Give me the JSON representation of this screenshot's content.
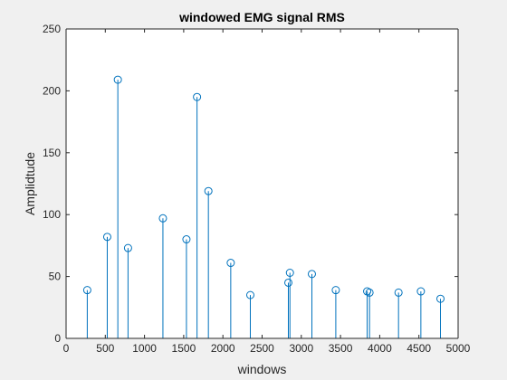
{
  "chart_data": {
    "type": "scatter",
    "plot_style": "stem",
    "title": "windowed EMG signal RMS",
    "xlabel": "windows",
    "ylabel": "Amplidtude",
    "xlim": [
      0,
      5000
    ],
    "ylim": [
      0,
      250
    ],
    "xticks": [
      0,
      500,
      1000,
      1500,
      2000,
      2500,
      3000,
      3500,
      4000,
      4500,
      5000
    ],
    "yticks": [
      0,
      50,
      100,
      150,
      200,
      250
    ],
    "grid": false,
    "box": true,
    "series": [
      {
        "marker": "circle",
        "color": "#0072BD",
        "points": [
          {
            "x": 270,
            "y": 39
          },
          {
            "x": 525,
            "y": 82
          },
          {
            "x": 660,
            "y": 209
          },
          {
            "x": 790,
            "y": 73
          },
          {
            "x": 1235,
            "y": 97
          },
          {
            "x": 1535,
            "y": 80
          },
          {
            "x": 1670,
            "y": 195
          },
          {
            "x": 1815,
            "y": 119
          },
          {
            "x": 2100,
            "y": 61
          },
          {
            "x": 2350,
            "y": 35
          },
          {
            "x": 2835,
            "y": 45
          },
          {
            "x": 2855,
            "y": 53
          },
          {
            "x": 3135,
            "y": 52
          },
          {
            "x": 3440,
            "y": 39
          },
          {
            "x": 3840,
            "y": 38
          },
          {
            "x": 3870,
            "y": 37
          },
          {
            "x": 4240,
            "y": 37
          },
          {
            "x": 4525,
            "y": 38
          },
          {
            "x": 4775,
            "y": 32
          }
        ]
      }
    ]
  },
  "colors": {
    "figure_background": "#f0f0f0",
    "axes_background": "#ffffff",
    "axis_color": "#262626",
    "stem_color": "#0072BD"
  }
}
